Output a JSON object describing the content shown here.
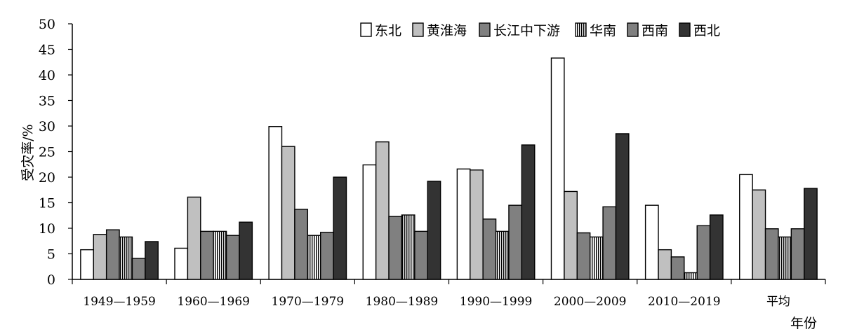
{
  "chart_data": {
    "type": "bar",
    "xlabel": "年份",
    "ylabel": "受灾率/%",
    "ylim": [
      0,
      50
    ],
    "yticks": [
      0,
      5,
      10,
      15,
      20,
      25,
      30,
      35,
      40,
      45,
      50
    ],
    "grid": false,
    "legend_position": "top-right",
    "categories": [
      "1949—1959",
      "1960—1969",
      "1970—1979",
      "1980—1989",
      "1990—1999",
      "2000—2009",
      "2010—2019",
      "平均"
    ],
    "series": [
      {
        "name": "东北",
        "fill": "#ffffff",
        "pattern": "none",
        "values": [
          5.8,
          6.1,
          29.9,
          22.4,
          21.6,
          43.3,
          14.5,
          20.5
        ]
      },
      {
        "name": "黄淮海",
        "fill": "#c0c0c0",
        "pattern": "none",
        "values": [
          8.8,
          16.1,
          26.0,
          26.9,
          21.4,
          17.2,
          5.8,
          17.5
        ]
      },
      {
        "name": "长江中下游",
        "fill": "#808080",
        "pattern": "none",
        "values": [
          9.7,
          9.4,
          13.7,
          12.3,
          11.8,
          9.1,
          4.4,
          9.9
        ]
      },
      {
        "name": "华南",
        "fill": "#ffffff",
        "pattern": "vertical-stripes",
        "values": [
          8.3,
          9.4,
          8.6,
          12.6,
          9.4,
          8.3,
          1.3,
          8.3
        ]
      },
      {
        "name": "西南",
        "fill": "#808080",
        "pattern": "none",
        "values": [
          4.1,
          8.6,
          9.2,
          9.4,
          14.5,
          14.2,
          10.5,
          9.9
        ]
      },
      {
        "name": "西北",
        "fill": "#333333",
        "pattern": "none",
        "values": [
          7.4,
          11.2,
          20.0,
          19.2,
          26.3,
          28.5,
          12.6,
          17.8
        ]
      }
    ]
  }
}
